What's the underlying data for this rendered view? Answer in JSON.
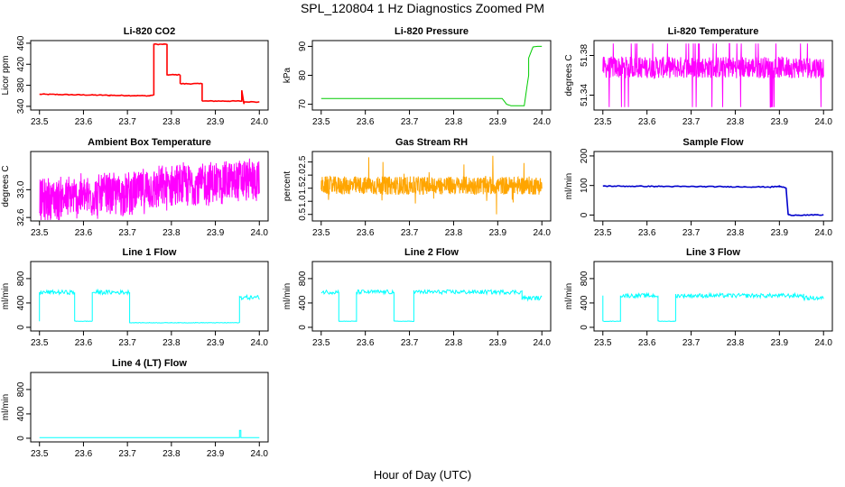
{
  "figure": {
    "title": "SPL_120804  1 Hz Diagnostics Zoomed PM",
    "xlabel": "Hour of Day (UTC)"
  },
  "chart_data": [
    {
      "type": "line",
      "title": "Li-820 CO2",
      "ylabel": "Licor ppm",
      "color": "#ff0000",
      "xlim": [
        23.48,
        24.02
      ],
      "xticks": [
        23.5,
        23.6,
        23.7,
        23.8,
        23.9,
        24.0
      ],
      "ylim": [
        333,
        465
      ],
      "yticks": [
        340,
        380,
        420,
        460
      ],
      "series": [
        {
          "name": "CO2",
          "x": [
            23.5,
            23.66,
            23.75,
            23.76,
            23.76,
            23.79,
            23.79,
            23.82,
            23.82,
            23.87,
            23.87,
            23.96,
            23.96,
            23.965,
            23.965,
            24.0
          ],
          "y": [
            363,
            361,
            360,
            362,
            458,
            458,
            400,
            400,
            383,
            383,
            350,
            350,
            370,
            345,
            349,
            348
          ]
        }
      ]
    },
    {
      "type": "line",
      "title": "Li-820 Pressure",
      "ylabel": "kPa",
      "color": "#00cc00",
      "xlim": [
        23.48,
        24.02
      ],
      "xticks": [
        23.5,
        23.6,
        23.7,
        23.8,
        23.9,
        24.0
      ],
      "ylim": [
        68,
        92
      ],
      "yticks": [
        70,
        80,
        90
      ],
      "series": [
        {
          "name": "Pressure",
          "x": [
            23.5,
            23.91,
            23.92,
            23.93,
            23.96,
            23.97,
            23.97,
            23.98,
            23.99,
            24.0
          ],
          "y": [
            72,
            72,
            70,
            69.5,
            69.5,
            80,
            86,
            89.8,
            90,
            90
          ]
        }
      ]
    },
    {
      "type": "line",
      "title": "Li-820 Temperature",
      "ylabel": "degrees C",
      "color": "#ff00ff",
      "xlim": [
        23.48,
        24.02
      ],
      "xticks": [
        23.5,
        23.6,
        23.7,
        23.8,
        23.9,
        24.0
      ],
      "ylim": [
        51.325,
        51.395
      ],
      "yticks": [
        51.34,
        51.38
      ],
      "series": [
        {
          "name": "Li-820 Temp",
          "x": [
            23.5,
            23.72,
            23.73,
            24.0
          ],
          "y": [
            51.368,
            51.368,
            51.368,
            51.368
          ]
        }
      ]
    },
    {
      "type": "line",
      "title": "Ambient Box Temperature",
      "ylabel": "degrees C",
      "color": "#ff00ff",
      "xlim": [
        23.48,
        24.02
      ],
      "xticks": [
        23.5,
        23.6,
        23.7,
        23.8,
        23.9,
        24.0
      ],
      "ylim": [
        32.55,
        33.55
      ],
      "yticks": [
        32.6,
        33.0
      ],
      "series": [
        {
          "name": "Box Temp",
          "x": [
            23.5,
            23.6,
            23.7,
            23.8,
            23.9,
            24.0
          ],
          "y": [
            32.85,
            32.9,
            32.95,
            33.05,
            33.1,
            33.15
          ]
        }
      ]
    },
    {
      "type": "line",
      "title": "Gas Stream RH",
      "ylabel": "percent",
      "color": "#ffa500",
      "xlim": [
        23.48,
        24.02
      ],
      "xticks": [
        23.5,
        23.6,
        23.7,
        23.8,
        23.9,
        24.0
      ],
      "ylim": [
        0.25,
        2.9
      ],
      "yticks": [
        0.5,
        1.0,
        1.5,
        2.0,
        2.5
      ],
      "series": [
        {
          "name": "RH",
          "x": [
            23.5,
            23.6,
            23.7,
            23.8,
            23.9,
            24.0
          ],
          "y": [
            1.6,
            1.6,
            1.6,
            1.6,
            1.6,
            1.6
          ]
        }
      ]
    },
    {
      "type": "line",
      "title": "Sample Flow",
      "ylabel": "ml/min",
      "color": "#0000cc",
      "xlim": [
        23.48,
        24.02
      ],
      "xticks": [
        23.5,
        23.6,
        23.7,
        23.8,
        23.9,
        24.0
      ],
      "ylim": [
        -20,
        215
      ],
      "yticks": [
        0,
        100,
        200
      ],
      "series": [
        {
          "name": "Sample",
          "x": [
            23.5,
            23.88,
            23.9,
            23.915,
            23.92,
            24.0
          ],
          "y": [
            98,
            95,
            97,
            92,
            0,
            0
          ]
        }
      ]
    },
    {
      "type": "line",
      "title": "Line 1 Flow",
      "ylabel": "ml/min",
      "color": "#00ffff",
      "xlim": [
        23.48,
        24.02
      ],
      "xticks": [
        23.5,
        23.6,
        23.7,
        23.8,
        23.9,
        24.0
      ],
      "ylim": [
        -60,
        1080
      ],
      "yticks": [
        0,
        400,
        800
      ],
      "series": [
        {
          "name": "Line 1",
          "x": [
            23.5,
            23.5,
            23.58,
            23.58,
            23.62,
            23.62,
            23.705,
            23.705,
            23.955,
            23.955,
            24.0
          ],
          "y": [
            100,
            575,
            575,
            100,
            100,
            575,
            575,
            75,
            75,
            490,
            490
          ]
        }
      ]
    },
    {
      "type": "line",
      "title": "Line 2 Flow",
      "ylabel": "ml/min",
      "color": "#00ffff",
      "xlim": [
        23.48,
        24.02
      ],
      "xticks": [
        23.5,
        23.6,
        23.7,
        23.8,
        23.9,
        24.0
      ],
      "ylim": [
        -60,
        1080
      ],
      "yticks": [
        0,
        400,
        800
      ],
      "series": [
        {
          "name": "Line 2",
          "x": [
            23.5,
            23.54,
            23.54,
            23.58,
            23.58,
            23.665,
            23.665,
            23.71,
            23.71,
            23.955,
            23.955,
            24.0
          ],
          "y": [
            580,
            580,
            100,
            100,
            580,
            580,
            100,
            100,
            580,
            580,
            480,
            480
          ]
        }
      ]
    },
    {
      "type": "line",
      "title": "Line 3 Flow",
      "ylabel": "ml/min",
      "color": "#00ffff",
      "xlim": [
        23.48,
        24.02
      ],
      "xticks": [
        23.5,
        23.6,
        23.7,
        23.8,
        23.9,
        24.0
      ],
      "ylim": [
        -60,
        1080
      ],
      "yticks": [
        0,
        400,
        800
      ],
      "series": [
        {
          "name": "Line 3",
          "x": [
            23.5,
            23.5,
            23.54,
            23.54,
            23.625,
            23.625,
            23.665,
            23.665,
            23.955,
            23.955,
            24.0
          ],
          "y": [
            520,
            100,
            100,
            520,
            520,
            100,
            100,
            520,
            520,
            480,
            480
          ]
        }
      ]
    },
    {
      "type": "line",
      "title": "Line 4 (LT) Flow",
      "ylabel": "ml/min",
      "color": "#00ffff",
      "xlim": [
        23.48,
        24.02
      ],
      "xticks": [
        23.5,
        23.6,
        23.7,
        23.8,
        23.9,
        24.0
      ],
      "ylim": [
        -60,
        1080
      ],
      "yticks": [
        0,
        400,
        800
      ],
      "series": [
        {
          "name": "Line 4",
          "x": [
            23.5,
            23.955,
            23.955,
            23.958,
            23.958,
            24.0
          ],
          "y": [
            10,
            10,
            130,
            130,
            10,
            10
          ]
        }
      ]
    }
  ]
}
